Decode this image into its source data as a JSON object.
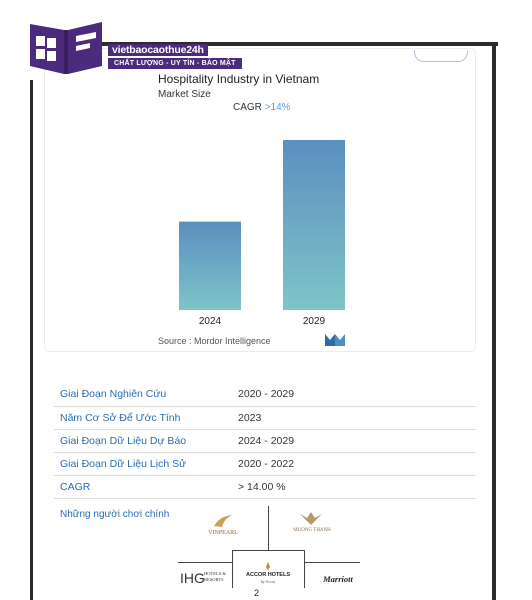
{
  "brand": {
    "name": "vietbaocaothue24h",
    "tagline": "CHẤT LƯỢNG - UY TÍN - BẢO MẬT",
    "logo_color": "#4c2a7d"
  },
  "chart_data": {
    "type": "bar",
    "title": "Hospitality Industry in Vietnam",
    "subtitle": "Market Size",
    "cagr_label": "CAGR",
    "cagr_value": ">14%",
    "categories": [
      "2024",
      "2029"
    ],
    "values": [
      0.52,
      1.0
    ],
    "value_note": "relative bar heights; no value axis printed",
    "gradient": {
      "top": "#5b8fbf",
      "bottom": "#7ec4c8"
    },
    "source": "Source :  Mordor Intelligence"
  },
  "table": {
    "rows": [
      {
        "label": "Giai Đoạn Nghiên Cứu",
        "value": "2020 - 2029"
      },
      {
        "label": "Năm Cơ Sở Để Ước Tính",
        "value": "2023"
      },
      {
        "label": "Giai Đoạn Dữ Liệu Dự Báo",
        "value": "2024 - 2029"
      },
      {
        "label": "Giai Đoạn Dữ Liệu Lịch Sử",
        "value": "2020 - 2022"
      },
      {
        "label": "CAGR",
        "value": "> 14.00 %"
      }
    ]
  },
  "players": {
    "label": "Những người chơi chính",
    "logos": {
      "vinpearl": "VINPEARL",
      "muongthanh": "MUONG THANH",
      "ihg": "IHG",
      "ihg_sub": "HOTELS & RESORTS",
      "accor": "ACCOR HOTELS",
      "accor_sub": "by Accor",
      "marriott": "Marriott"
    }
  },
  "page_number": "2"
}
